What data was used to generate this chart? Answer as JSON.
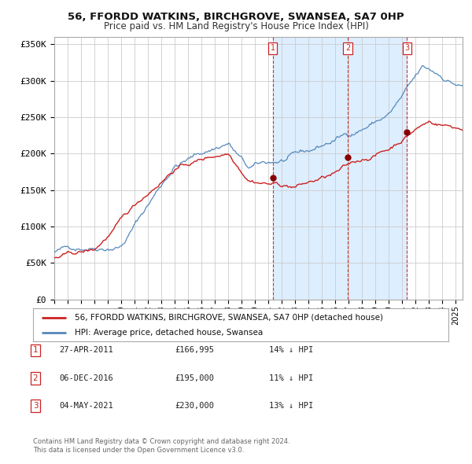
{
  "title": "56, FFORDD WATKINS, BIRCHGROVE, SWANSEA, SA7 0HP",
  "subtitle": "Price paid vs. HM Land Registry's House Price Index (HPI)",
  "title_fontsize": 9.5,
  "subtitle_fontsize": 8.5,
  "xlim_start": 1995.0,
  "xlim_end": 2025.5,
  "ylim_min": 0,
  "ylim_max": 360000,
  "background_color": "#ffffff",
  "plot_bg_color": "#ffffff",
  "shaded_region_color": "#ddeeff",
  "grid_color": "#cccccc",
  "hpi_line_color": "#5588bb",
  "price_line_color": "#cc2222",
  "vline_color": "#cc3333",
  "marker_color": "#880000",
  "purchase_dates": [
    2011.32,
    2016.92,
    2021.34
  ],
  "purchase_prices": [
    166995,
    195000,
    230000
  ],
  "purchase_labels": [
    "1",
    "2",
    "3"
  ],
  "table_entries": [
    {
      "num": "1",
      "date": "27-APR-2011",
      "price": "£166,995",
      "pct": "14% ↓ HPI"
    },
    {
      "num": "2",
      "date": "06-DEC-2016",
      "price": "£195,000",
      "pct": "11% ↓ HPI"
    },
    {
      "num": "3",
      "date": "04-MAY-2021",
      "price": "£230,000",
      "pct": "13% ↓ HPI"
    }
  ],
  "legend_entry1": "56, FFORDD WATKINS, BIRCHGROVE, SWANSEA, SA7 0HP (detached house)",
  "legend_entry2": "HPI: Average price, detached house, Swansea",
  "footer1": "Contains HM Land Registry data © Crown copyright and database right 2024.",
  "footer2": "This data is licensed under the Open Government Licence v3.0.",
  "ytick_labels": [
    "£0",
    "£50K",
    "£100K",
    "£150K",
    "£200K",
    "£250K",
    "£300K",
    "£350K"
  ],
  "ytick_values": [
    0,
    50000,
    100000,
    150000,
    200000,
    250000,
    300000,
    350000
  ]
}
